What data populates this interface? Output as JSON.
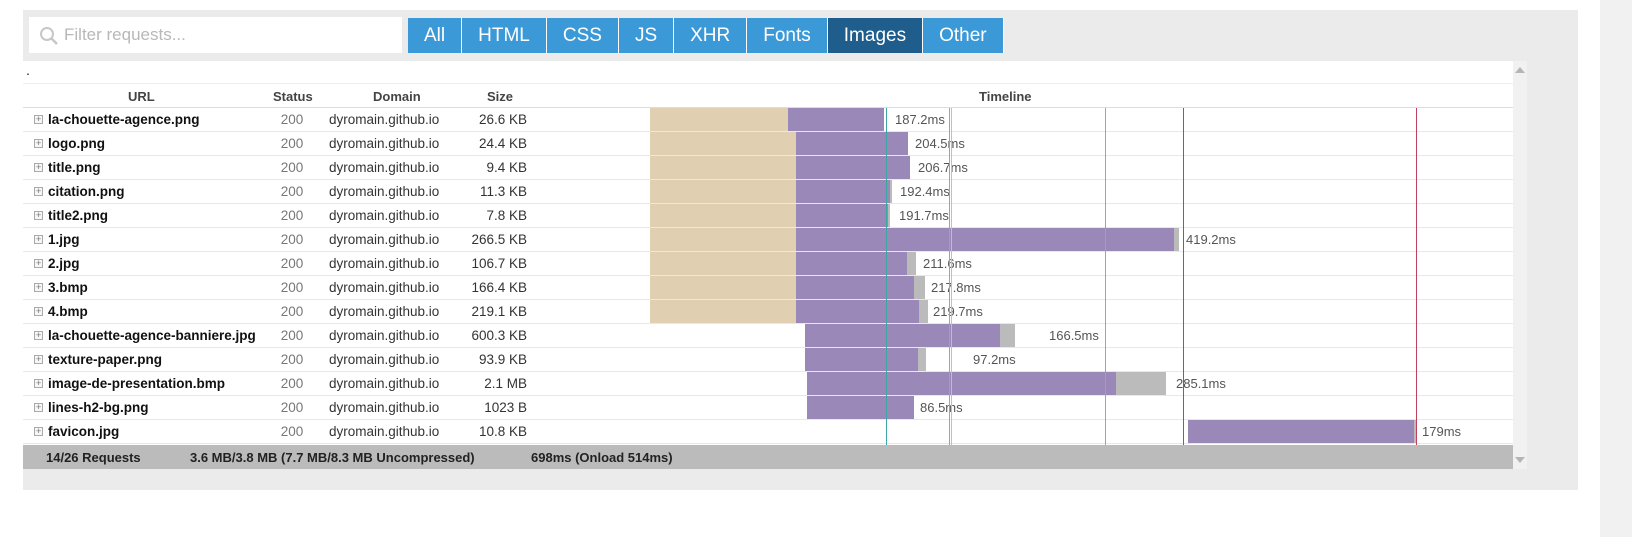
{
  "filter": {
    "placeholder": "Filter requests..."
  },
  "tabs": [
    {
      "label": "All",
      "active": false
    },
    {
      "label": "HTML",
      "active": false
    },
    {
      "label": "CSS",
      "active": false
    },
    {
      "label": "JS",
      "active": false
    },
    {
      "label": "XHR",
      "active": false
    },
    {
      "label": "Fonts",
      "active": false
    },
    {
      "label": "Images",
      "active": true
    },
    {
      "label": "Other",
      "active": false
    }
  ],
  "dot_text": ".",
  "columns": {
    "url": "URL",
    "status": "Status",
    "domain": "Domain",
    "size": "Size",
    "timeline": "Timeline"
  },
  "requests": [
    {
      "url": "la-chouette-agence.png",
      "status": "200",
      "domain": "dyromain.github.io",
      "size": "26.6 KB",
      "duration": "187.2ms",
      "wait_ms": 145,
      "receive_ms": 100,
      "idle_ms": 0
    },
    {
      "url": "logo.png",
      "status": "200",
      "domain": "dyromain.github.io",
      "size": "24.4 KB",
      "duration": "204.5ms",
      "wait_ms": 153,
      "receive_ms": 115,
      "idle_ms": 0
    },
    {
      "url": "title.png",
      "status": "200",
      "domain": "dyromain.github.io",
      "size": "9.4 KB",
      "duration": "206.7ms",
      "wait_ms": 153,
      "receive_ms": 118,
      "idle_ms": 0
    },
    {
      "url": "citation.png",
      "status": "200",
      "domain": "dyromain.github.io",
      "size": "11.3 KB",
      "duration": "192.4ms",
      "wait_ms": 153,
      "receive_ms": 100,
      "idle_ms": 2
    },
    {
      "url": "title2.png",
      "status": "200",
      "domain": "dyromain.github.io",
      "size": "7.8 KB",
      "duration": "191.7ms",
      "wait_ms": 153,
      "receive_ms": 98,
      "idle_ms": 2
    },
    {
      "url": "1.jpg",
      "status": "200",
      "domain": "dyromain.github.io",
      "size": "266.5 KB",
      "duration": "419.2ms",
      "wait_ms": 153,
      "receive_ms": 395,
      "idle_ms": 5
    },
    {
      "url": "2.jpg",
      "status": "200",
      "domain": "dyromain.github.io",
      "size": "106.7 KB",
      "duration": "211.6ms",
      "wait_ms": 153,
      "receive_ms": 115,
      "idle_ms": 10
    },
    {
      "url": "3.bmp",
      "status": "200",
      "domain": "dyromain.github.io",
      "size": "166.4 KB",
      "duration": "217.8ms",
      "wait_ms": 153,
      "receive_ms": 122,
      "idle_ms": 13
    },
    {
      "url": "4.bmp",
      "status": "200",
      "domain": "dyromain.github.io",
      "size": "219.1 KB",
      "duration": "219.7ms",
      "wait_ms": 153,
      "receive_ms": 128,
      "idle_ms": 10
    },
    {
      "url": "la-chouette-agence-banniere.jpg",
      "status": "200",
      "domain": "dyromain.github.io",
      "size": "600.3 KB",
      "duration": "166.5ms",
      "wait_ms": 0,
      "receive_ms": 0,
      "idle_ms": 0
    },
    {
      "url": "texture-paper.png",
      "status": "200",
      "domain": "dyromain.github.io",
      "size": "93.9 KB",
      "duration": "97.2ms",
      "wait_ms": 0,
      "receive_ms": 0,
      "idle_ms": 0
    },
    {
      "url": "image-de-presentation.bmp",
      "status": "200",
      "domain": "dyromain.github.io",
      "size": "2.1 MB",
      "duration": "285.1ms",
      "wait_ms": 0,
      "receive_ms": 0,
      "idle_ms": 0
    },
    {
      "url": "lines-h2-bg.png",
      "status": "200",
      "domain": "dyromain.github.io",
      "size": "1023 B",
      "duration": "86.5ms",
      "wait_ms": 0,
      "receive_ms": 0,
      "idle_ms": 0
    },
    {
      "url": "favicon.jpg",
      "status": "200",
      "domain": "dyromain.github.io",
      "size": "10.8 KB",
      "duration": "179ms",
      "wait_ms": 0,
      "receive_ms": 0,
      "idle_ms": 0
    }
  ],
  "footer": {
    "requests": "14/26 Requests",
    "size": "3.6 MB/3.8 MB  (7.7 MB/8.3 MB Uncompressed)",
    "time": "698ms  (Onload 514ms)"
  },
  "colors": {
    "tab": "#3c99d8",
    "tab_active": "#1e5d8c",
    "wait": "#e1cfb2",
    "receive": "#9a88b8",
    "idle": "#bbbbbb"
  }
}
